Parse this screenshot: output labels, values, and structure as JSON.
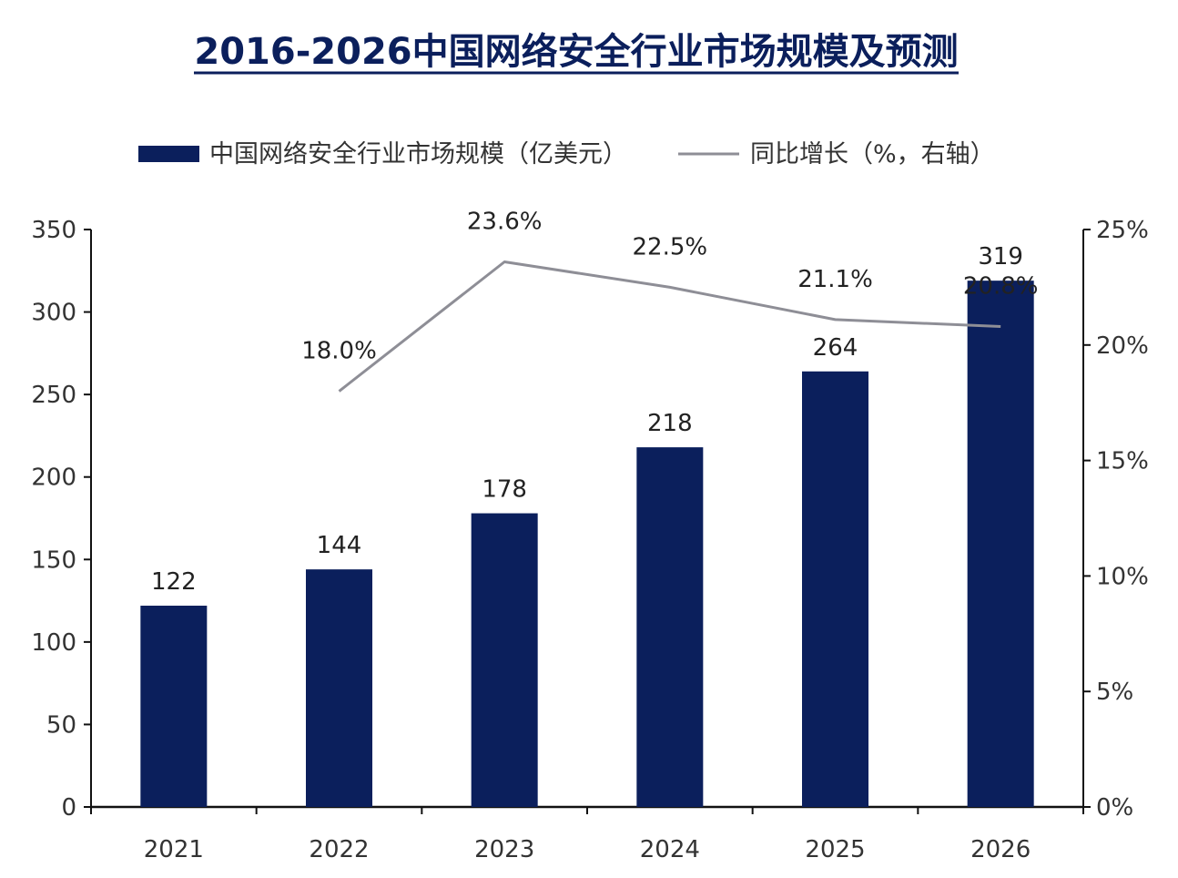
{
  "chart_data": {
    "type": "bar",
    "title": "2016-2026中国网络安全行业市场规模及预测",
    "categories": [
      "2021",
      "2022",
      "2023",
      "2024",
      "2025",
      "2026"
    ],
    "series": [
      {
        "name": "中国网络安全行业市场规模（亿美元）",
        "type": "bar",
        "axis": "left",
        "color": "#0b1f5c",
        "values": [
          122,
          144,
          178,
          218,
          264,
          319
        ],
        "labels": [
          "122",
          "144",
          "178",
          "218",
          "264",
          "319"
        ]
      },
      {
        "name": "同比增长（%，右轴）",
        "type": "line",
        "axis": "right",
        "color": "#8e8e96",
        "values": [
          null,
          18.0,
          23.6,
          22.5,
          21.1,
          20.8
        ],
        "labels": [
          "",
          "18.0%",
          "23.6%",
          "22.5%",
          "21.1%",
          "20.8%"
        ]
      }
    ],
    "y_left": {
      "min": 0,
      "max": 350,
      "ticks": [
        0,
        50,
        100,
        150,
        200,
        250,
        300,
        350
      ],
      "tick_labels": [
        "0",
        "50",
        "100",
        "150",
        "200",
        "250",
        "300",
        "350"
      ]
    },
    "y_right": {
      "min": 0,
      "max": 25,
      "ticks": [
        0,
        5,
        10,
        15,
        20,
        25
      ],
      "tick_labels": [
        "0%",
        "5%",
        "10%",
        "15%",
        "20%",
        "25%"
      ]
    },
    "grid": false,
    "legend_position": "top"
  }
}
